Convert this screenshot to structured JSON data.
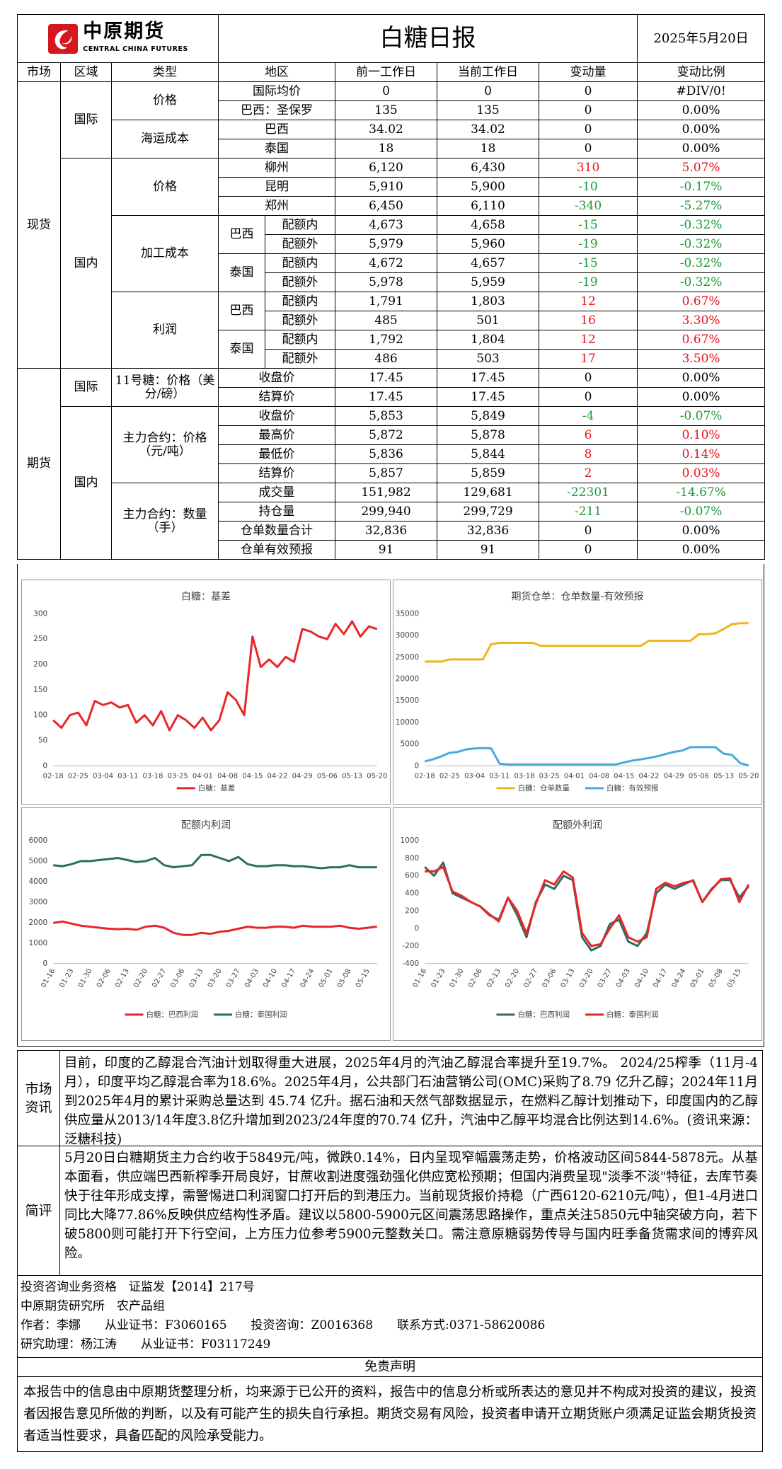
{
  "header": {
    "logo": "中原期货",
    "logo_en": "CENTRAL CHINA FUTURES",
    "title": "白糖日报",
    "date": "2025年5月20日"
  },
  "table": {
    "columns": [
      "市场",
      "区域",
      "类型",
      "地区",
      "前一工作日",
      "当前工作日",
      "变动量",
      "变动比例"
    ],
    "markets": [
      "现货",
      "期货"
    ],
    "regions": [
      "国际",
      "国内",
      "国际",
      "国内"
    ],
    "types": [
      "价格",
      "海运成本",
      "价格",
      "加工成本",
      "利润",
      "11号糖：价格（美分/磅）",
      "主力合约：价格（元/吨）",
      "主力合约：数量（手）"
    ],
    "origins": [
      "巴西",
      "泰国",
      "巴西",
      "泰国"
    ],
    "rows": [
      [
        "国际均价",
        "0",
        "0",
        "0",
        "#DIV/0!"
      ],
      [
        "巴西：圣保罗",
        "135",
        "135",
        "0",
        "0.00%"
      ],
      [
        "巴西",
        "34.02",
        "34.02",
        "0",
        "0.00%"
      ],
      [
        "泰国",
        "18",
        "18",
        "0",
        "0.00%"
      ],
      [
        "柳州",
        "6,120",
        "6,430",
        "310",
        "5.07%"
      ],
      [
        "昆明",
        "5,910",
        "5,900",
        "-10",
        "-0.17%"
      ],
      [
        "郑州",
        "6,450",
        "6,110",
        "-340",
        "-5.27%"
      ],
      [
        "配额内",
        "4,673",
        "4,658",
        "-15",
        "-0.32%"
      ],
      [
        "配额外",
        "5,979",
        "5,960",
        "-19",
        "-0.32%"
      ],
      [
        "配额内",
        "4,672",
        "4,657",
        "-15",
        "-0.32%"
      ],
      [
        "配额外",
        "5,978",
        "5,959",
        "-19",
        "-0.32%"
      ],
      [
        "配额内",
        "1,791",
        "1,803",
        "12",
        "0.67%"
      ],
      [
        "配额外",
        "485",
        "501",
        "16",
        "3.30%"
      ],
      [
        "配额内",
        "1,792",
        "1,804",
        "12",
        "0.67%"
      ],
      [
        "配额外",
        "486",
        "503",
        "17",
        "3.50%"
      ],
      [
        "收盘价",
        "17.45",
        "17.45",
        "0",
        "0.00%"
      ],
      [
        "结算价",
        "17.45",
        "17.45",
        "0",
        "0.00%"
      ],
      [
        "收盘价",
        "5,853",
        "5,849",
        "-4",
        "-0.07%"
      ],
      [
        "最高价",
        "5,872",
        "5,878",
        "6",
        "0.10%"
      ],
      [
        "最低价",
        "5,836",
        "5,844",
        "8",
        "0.14%"
      ],
      [
        "结算价",
        "5,857",
        "5,859",
        "2",
        "0.03%"
      ],
      [
        "成交量",
        "151,982",
        "129,681",
        "-22301",
        "-14.67%"
      ],
      [
        "持仓量",
        "299,940",
        "299,729",
        "-211",
        "-0.07%"
      ],
      [
        "仓单数量合计",
        "32,836",
        "32,836",
        "0",
        "0.00%"
      ],
      [
        "仓单有效预报",
        "91",
        "91",
        "0",
        "0.00%"
      ]
    ]
  },
  "chart_data": [
    {
      "type": "line",
      "title": "白糖：基差",
      "categories": [
        "02-18",
        null,
        null,
        "02-25",
        null,
        null,
        "03-04",
        null,
        null,
        "03-11",
        null,
        null,
        "03-18",
        null,
        null,
        "03-25",
        null,
        null,
        "04-01",
        null,
        null,
        "04-08",
        null,
        null,
        "04-15",
        null,
        null,
        "04-22",
        null,
        null,
        "04-29",
        null,
        null,
        "05-06",
        null,
        null,
        "05-13",
        null,
        null,
        "05-20"
      ],
      "series": [
        {
          "name": "白糖：基差",
          "color": "#e8262a",
          "values": [
            90,
            75,
            100,
            105,
            80,
            128,
            120,
            125,
            115,
            120,
            85,
            100,
            80,
            108,
            70,
            100,
            90,
            75,
            95,
            70,
            90,
            145,
            130,
            100,
            255,
            195,
            210,
            195,
            215,
            205,
            270,
            265,
            255,
            250,
            280,
            260,
            285,
            255,
            275,
            270
          ]
        }
      ],
      "ylim": [
        0,
        300
      ],
      "yticks": [
        0,
        50,
        100,
        150,
        200,
        250,
        300
      ],
      "grid": false,
      "legend": "bottom"
    },
    {
      "type": "line",
      "title": "期货仓单：仓单数量-有效预报",
      "categories": [
        "02-18",
        null,
        null,
        "02-25",
        null,
        null,
        "03-04",
        null,
        null,
        "03-11",
        null,
        null,
        "03-18",
        null,
        null,
        "03-25",
        null,
        null,
        "04-01",
        null,
        null,
        "04-08",
        null,
        null,
        "04-15",
        null,
        null,
        "04-22",
        null,
        null,
        "04-29",
        null,
        null,
        "05-06",
        null,
        null,
        "05-13",
        null,
        null,
        "05-20"
      ],
      "series": [
        {
          "name": "白糖：仓单数量",
          "color": "#f2b31c",
          "values": [
            24000,
            24000,
            24000,
            24500,
            24500,
            24500,
            24500,
            24500,
            28000,
            28300,
            28300,
            28300,
            28300,
            28300,
            27600,
            27600,
            27600,
            27600,
            27600,
            27600,
            27600,
            27600,
            27600,
            27600,
            27600,
            27600,
            27600,
            28800,
            28800,
            28800,
            28800,
            28800,
            28800,
            30300,
            30300,
            30500,
            31500,
            32600,
            32836,
            32836
          ]
        },
        {
          "name": "白糖：有效预报",
          "color": "#4aa7de",
          "values": [
            1000,
            1500,
            2200,
            3000,
            3200,
            3800,
            4000,
            4100,
            4000,
            500,
            300,
            300,
            300,
            300,
            300,
            300,
            300,
            300,
            300,
            300,
            300,
            300,
            300,
            300,
            800,
            1200,
            1500,
            1800,
            2200,
            2700,
            3200,
            3500,
            4300,
            4300,
            4300,
            4300,
            2800,
            2500,
            600,
            91
          ]
        }
      ],
      "ylim": [
        0,
        35000
      ],
      "yticks": [
        0,
        5000,
        10000,
        15000,
        20000,
        25000,
        30000,
        35000
      ],
      "grid": false,
      "legend": "bottom"
    },
    {
      "type": "line",
      "title": "配额内利润",
      "categories": [
        "01-16",
        null,
        "01-23",
        null,
        "01-30",
        null,
        "02-06",
        null,
        "02-13",
        null,
        "02-20",
        null,
        "02-27",
        null,
        "03-06",
        null,
        "03-13",
        null,
        "03-20",
        null,
        "03-27",
        null,
        "04-03",
        null,
        "04-10",
        null,
        "04-17",
        null,
        "04-24",
        null,
        "05-01",
        null,
        "05-08",
        null,
        "05-15",
        null
      ],
      "series": [
        {
          "name": "白糖：巴西利润",
          "color": "#e8262a",
          "values": [
            1980,
            2050,
            1950,
            1850,
            1800,
            1750,
            1700,
            1680,
            1700,
            1650,
            1800,
            1850,
            1750,
            1500,
            1400,
            1400,
            1500,
            1450,
            1550,
            1600,
            1700,
            1800,
            1750,
            1750,
            1800,
            1800,
            1750,
            1850,
            1800,
            1800,
            1800,
            1850,
            1750,
            1700,
            1750,
            1803
          ]
        },
        {
          "name": "白糖：泰国利润",
          "color": "#2e6e5f",
          "values": [
            4800,
            4750,
            4850,
            5000,
            5000,
            5050,
            5100,
            5150,
            5050,
            4950,
            5000,
            5150,
            4800,
            4700,
            4750,
            4800,
            5300,
            5300,
            5150,
            5000,
            5200,
            4850,
            4750,
            4750,
            4800,
            4800,
            4750,
            4750,
            4700,
            4650,
            4700,
            4700,
            4800,
            4700,
            4700,
            4700
          ]
        }
      ],
      "ylim": [
        0,
        6000
      ],
      "yticks": [
        0,
        1000,
        2000,
        3000,
        4000,
        5000,
        6000
      ],
      "grid": false,
      "legend": "bottom",
      "rotate_labels": true
    },
    {
      "type": "line",
      "title": "配额外利润",
      "categories": [
        "01-16",
        null,
        "01-23",
        null,
        "01-30",
        null,
        "02-06",
        null,
        "02-13",
        null,
        "02-20",
        null,
        "02-27",
        null,
        "03-06",
        null,
        "03-13",
        null,
        "03-20",
        null,
        "03-27",
        null,
        "04-03",
        null,
        "04-10",
        null,
        "04-17",
        null,
        "04-24",
        null,
        "05-01",
        null,
        "05-08",
        null,
        "05-15",
        null
      ],
      "series": [
        {
          "name": "白糖：巴西利润",
          "color": "#2e6e5f",
          "values": [
            700,
            600,
            750,
            400,
            350,
            300,
            250,
            150,
            100,
            350,
            150,
            -100,
            300,
            500,
            450,
            600,
            550,
            -100,
            -250,
            -200,
            50,
            100,
            -150,
            -200,
            -50,
            400,
            500,
            450,
            500,
            550,
            300,
            450,
            550,
            550,
            350,
            480
          ]
        },
        {
          "name": "白糖：泰国利润",
          "color": "#e8262a",
          "values": [
            650,
            650,
            700,
            420,
            370,
            300,
            250,
            160,
            80,
            350,
            200,
            -60,
            280,
            550,
            500,
            650,
            580,
            -50,
            -200,
            -180,
            0,
            150,
            -100,
            -150,
            -100,
            450,
            520,
            480,
            520,
            540,
            300,
            440,
            560,
            570,
            300,
            500
          ]
        }
      ],
      "ylim": [
        -400,
        1000
      ],
      "yticks": [
        -400,
        -200,
        0,
        200,
        400,
        600,
        800,
        1000
      ],
      "grid": false,
      "legend": "bottom",
      "rotate_labels": true
    }
  ],
  "news": {
    "label": "市场资讯",
    "text": "目前，印度的乙醇混合汽油计划取得重大进展，2025年4月的汽油乙醇混合率提升至19.7%。 2024/25榨季（11月-4月），印度平均乙醇混合率为18.6%。2025年4月，公共部门石油营销公司(OMC)采购了8.79 亿升乙醇；2024年11月到2025年4月的累计采购总量达到 45.74 亿升。据石油和天然气部数据显示，在燃料乙醇计划推动下，印度国内的乙醇供应量从2013/14年度3.8亿升增加到2023/24年度的70.74 亿升，汽油中乙醇平均混合比例达到14.6%。(资讯来源：泛糖科技)"
  },
  "comment": {
    "label": "简评",
    "text": "5月20日白糖期货主力合约收于5849元/吨，微跌0.14%，日内呈现窄幅震荡走势，价格波动区间5844-5878元。从基本面看，供应端巴西新榨季开局良好，甘蔗收割进度强劲强化供应宽松预期；但国内消费呈现\"淡季不淡\"特征，去库节奏快于往年形成支撑，需警惕进口利润窗口打开后的到港压力。当前现货报价持稳（广西6120-6210元/吨），但1-4月进口同比大降77.86%反映供应结构性矛盾。建议以5800-5900元区间震荡思路操作，重点关注5850元中轴突破方向，若下破5800则可能打开下行空间，上方压力位参考5900元整数关口。需注意原糖弱势传导与国内旺季备货需求间的博弈风险。"
  },
  "footer": {
    "lines": [
      "投资咨询业务资格　证监发【2014】217号",
      "中原期货研究所　农产品组",
      "作者：李娜　　从业证书：F3060165　　投资咨询：Z0016368　　联系方式:0371-58620086",
      "研究助理：杨江涛　　从业证书：F03117249"
    ]
  },
  "disclaimer": {
    "title": "免责声明",
    "text": "本报告中的信息由中原期货整理分析，均来源于已公开的资料，报告中的信息分析或所表达的意见并不构成对投资的建议，投资者因报告意见所做的判断，以及有可能产生的损失自行承担。期货交易有风险，投资者申请开立期货账户须满足证监会期货投资者适当性要求，具备匹配的风险承受能力。"
  }
}
